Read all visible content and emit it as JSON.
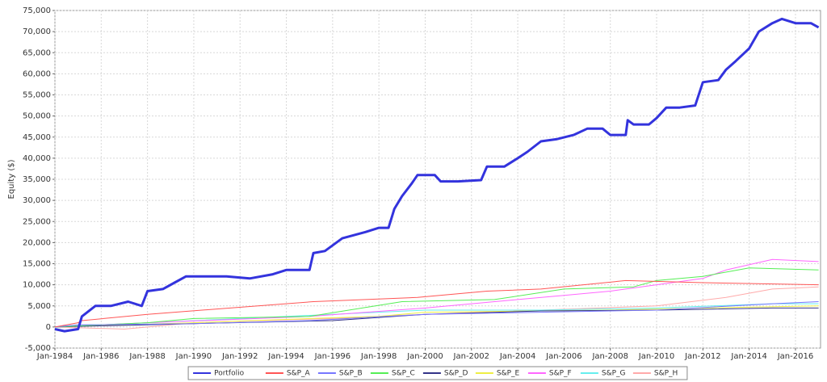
{
  "chart_data": {
    "type": "line",
    "y_label": "Equity ($)",
    "xlim": [
      "1984-01",
      "2017-02"
    ],
    "ylim": [
      -5000,
      75000
    ],
    "grid": true,
    "legend": "bottom",
    "xticks": [
      {
        "value": "1984-01",
        "label": "Jan-1984"
      },
      {
        "value": "1986-01",
        "label": "Jan-1986"
      },
      {
        "value": "1988-01",
        "label": "Jan-1988"
      },
      {
        "value": "1990-01",
        "label": "Jan-1990"
      },
      {
        "value": "1992-01",
        "label": "Jan-1992"
      },
      {
        "value": "1994-01",
        "label": "Jan-1994"
      },
      {
        "value": "1996-01",
        "label": "Jan-1996"
      },
      {
        "value": "1998-01",
        "label": "Jan-1998"
      },
      {
        "value": "2000-01",
        "label": "Jan-2000"
      },
      {
        "value": "2002-01",
        "label": "Jan-2002"
      },
      {
        "value": "2004-01",
        "label": "Jan-2004"
      },
      {
        "value": "2006-01",
        "label": "Jan-2006"
      },
      {
        "value": "2008-01",
        "label": "Jan-2008"
      },
      {
        "value": "2010-01",
        "label": "Jan-2010"
      },
      {
        "value": "2012-01",
        "label": "Jan-2012"
      },
      {
        "value": "2014-01",
        "label": "Jan-2014"
      },
      {
        "value": "2016-01",
        "label": "Jan-2016"
      }
    ],
    "yticks": [
      {
        "value": -5000,
        "label": "-5,000"
      },
      0,
      {
        "value": 5000,
        "label": "5,000"
      },
      {
        "value": 10000,
        "label": "10,000"
      },
      {
        "value": 15000,
        "label": "15,000"
      },
      {
        "value": 20000,
        "label": "20,000"
      },
      {
        "value": 25000,
        "label": "25,000"
      },
      {
        "value": 30000,
        "label": "30,000"
      },
      {
        "value": 35000,
        "label": "35,000"
      },
      {
        "value": 40000,
        "label": "40,000"
      },
      {
        "value": 45000,
        "label": "45,000"
      },
      {
        "value": 50000,
        "label": "50,000"
      },
      {
        "value": 55000,
        "label": "55,000"
      },
      {
        "value": 60000,
        "label": "60,000"
      },
      {
        "value": 65000,
        "label": "65,000"
      },
      {
        "value": 70000,
        "label": "70,000"
      },
      {
        "value": 75000,
        "label": "75,000"
      }
    ],
    "series": [
      {
        "name": "Portfolio",
        "color": "#3333dd",
        "width": 3,
        "x": [
          "1984-01",
          "1984-06",
          "1985-01",
          "1985-03",
          "1985-10",
          "1986-06",
          "1987-03",
          "1987-10",
          "1988-01",
          "1988-09",
          "1989-03",
          "1989-09",
          "1990-06",
          "1991-06",
          "1992-06",
          "1993-06",
          "1994-01",
          "1995-01",
          "1995-03",
          "1995-09",
          "1996-06",
          "1997-06",
          "1998-01",
          "1998-06",
          "1998-09",
          "1999-01",
          "1999-06",
          "1999-09",
          "2000-06",
          "2000-09",
          "2001-06",
          "2002-06",
          "2002-09",
          "2003-06",
          "2004-01",
          "2004-06",
          "2005-01",
          "2005-09",
          "2006-06",
          "2007-01",
          "2007-09",
          "2008-01",
          "2008-09",
          "2008-10",
          "2009-01",
          "2009-09",
          "2010-01",
          "2010-06",
          "2011-01",
          "2011-09",
          "2012-01",
          "2012-09",
          "2013-01",
          "2013-06",
          "2014-01",
          "2014-06",
          "2015-01",
          "2015-06",
          "2016-01",
          "2016-09",
          "2017-01"
        ],
        "values": [
          -500,
          -1000,
          -500,
          2500,
          5000,
          5000,
          6000,
          5000,
          8500,
          9000,
          10500,
          12000,
          12000,
          12000,
          11500,
          12500,
          13500,
          13500,
          17500,
          18000,
          21000,
          22500,
          23500,
          23500,
          28000,
          31000,
          34000,
          36000,
          36000,
          34500,
          34500,
          34800,
          38000,
          38000,
          40000,
          41500,
          44000,
          44500,
          45500,
          47000,
          47000,
          45500,
          45500,
          49000,
          48000,
          48000,
          49500,
          52000,
          52000,
          52500,
          58000,
          58500,
          61000,
          63000,
          66000,
          70000,
          72000,
          73000,
          72000,
          72000,
          71000
        ]
      },
      {
        "name": "S&P_A",
        "color": "#ff5555",
        "width": 1,
        "x": [
          "1984-01",
          "1985-01",
          "1985-03",
          "1988-01",
          "1995-03",
          "1999-09",
          "2002-09",
          "2005-01",
          "2008-09",
          "2012-01",
          "2017-01"
        ],
        "values": [
          0,
          1000,
          1500,
          3000,
          6000,
          7000,
          8500,
          9000,
          11000,
          10500,
          10000
        ]
      },
      {
        "name": "S&P_B",
        "color": "#7777ff",
        "width": 1,
        "x": [
          "1984-01",
          "1985-01",
          "1990-01",
          "1995-01",
          "2000-01",
          "2005-01",
          "2010-01",
          "2015-01",
          "2017-01"
        ],
        "values": [
          0,
          500,
          800,
          1500,
          3000,
          3500,
          4000,
          5500,
          6000
        ]
      },
      {
        "name": "S&P_C",
        "color": "#55ee55",
        "width": 1,
        "x": [
          "1984-01",
          "1988-01",
          "1990-01",
          "1995-01",
          "1999-01",
          "2003-01",
          "2006-01",
          "2009-01",
          "2010-01",
          "2012-01",
          "2014-01",
          "2017-01"
        ],
        "values": [
          0,
          1000,
          2000,
          2500,
          6000,
          6500,
          9000,
          9500,
          11000,
          12000,
          14000,
          13500
        ]
      },
      {
        "name": "S&P_D",
        "color": "#333388",
        "width": 1,
        "x": [
          "1984-01",
          "1990-01",
          "1996-01",
          "2000-01",
          "2005-01",
          "2010-01",
          "2015-01",
          "2017-01"
        ],
        "values": [
          0,
          800,
          1500,
          3000,
          3800,
          4000,
          4500,
          4500
        ]
      },
      {
        "name": "S&P_E",
        "color": "#eeee44",
        "width": 1,
        "x": [
          "1984-01",
          "1990-01",
          "1995-01",
          "1998-01",
          "2000-01",
          "2008-01",
          "2012-01",
          "2017-01"
        ],
        "values": [
          0,
          1000,
          2000,
          2500,
          3500,
          4000,
          4500,
          5000
        ]
      },
      {
        "name": "S&P_F",
        "color": "#ff66ff",
        "width": 1,
        "x": [
          "1984-01",
          "1988-01",
          "1995-01",
          "2000-01",
          "2004-01",
          "2006-01",
          "2008-01",
          "2012-01",
          "2013-01",
          "2015-01",
          "2017-01"
        ],
        "values": [
          0,
          1000,
          2500,
          4500,
          6500,
          7500,
          8500,
          11500,
          13500,
          16000,
          15500
        ]
      },
      {
        "name": "S&P_G",
        "color": "#66eeee",
        "width": 1,
        "x": [
          "1984-01",
          "1990-01",
          "1996-01",
          "2000-01",
          "2005-01",
          "2010-01",
          "2015-01",
          "2017-01"
        ],
        "values": [
          0,
          1500,
          3000,
          4000,
          4000,
          4500,
          5500,
          5500
        ]
      },
      {
        "name": "S&P_H",
        "color": "#ffaaaa",
        "width": 1,
        "x": [
          "1984-01",
          "1987-01",
          "1990-01",
          "1996-01",
          "2000-01",
          "2005-01",
          "2010-01",
          "2013-01",
          "2015-01",
          "2017-01"
        ],
        "values": [
          0,
          -500,
          1000,
          2000,
          3000,
          4000,
          5000,
          7000,
          9000,
          9500
        ]
      }
    ]
  }
}
